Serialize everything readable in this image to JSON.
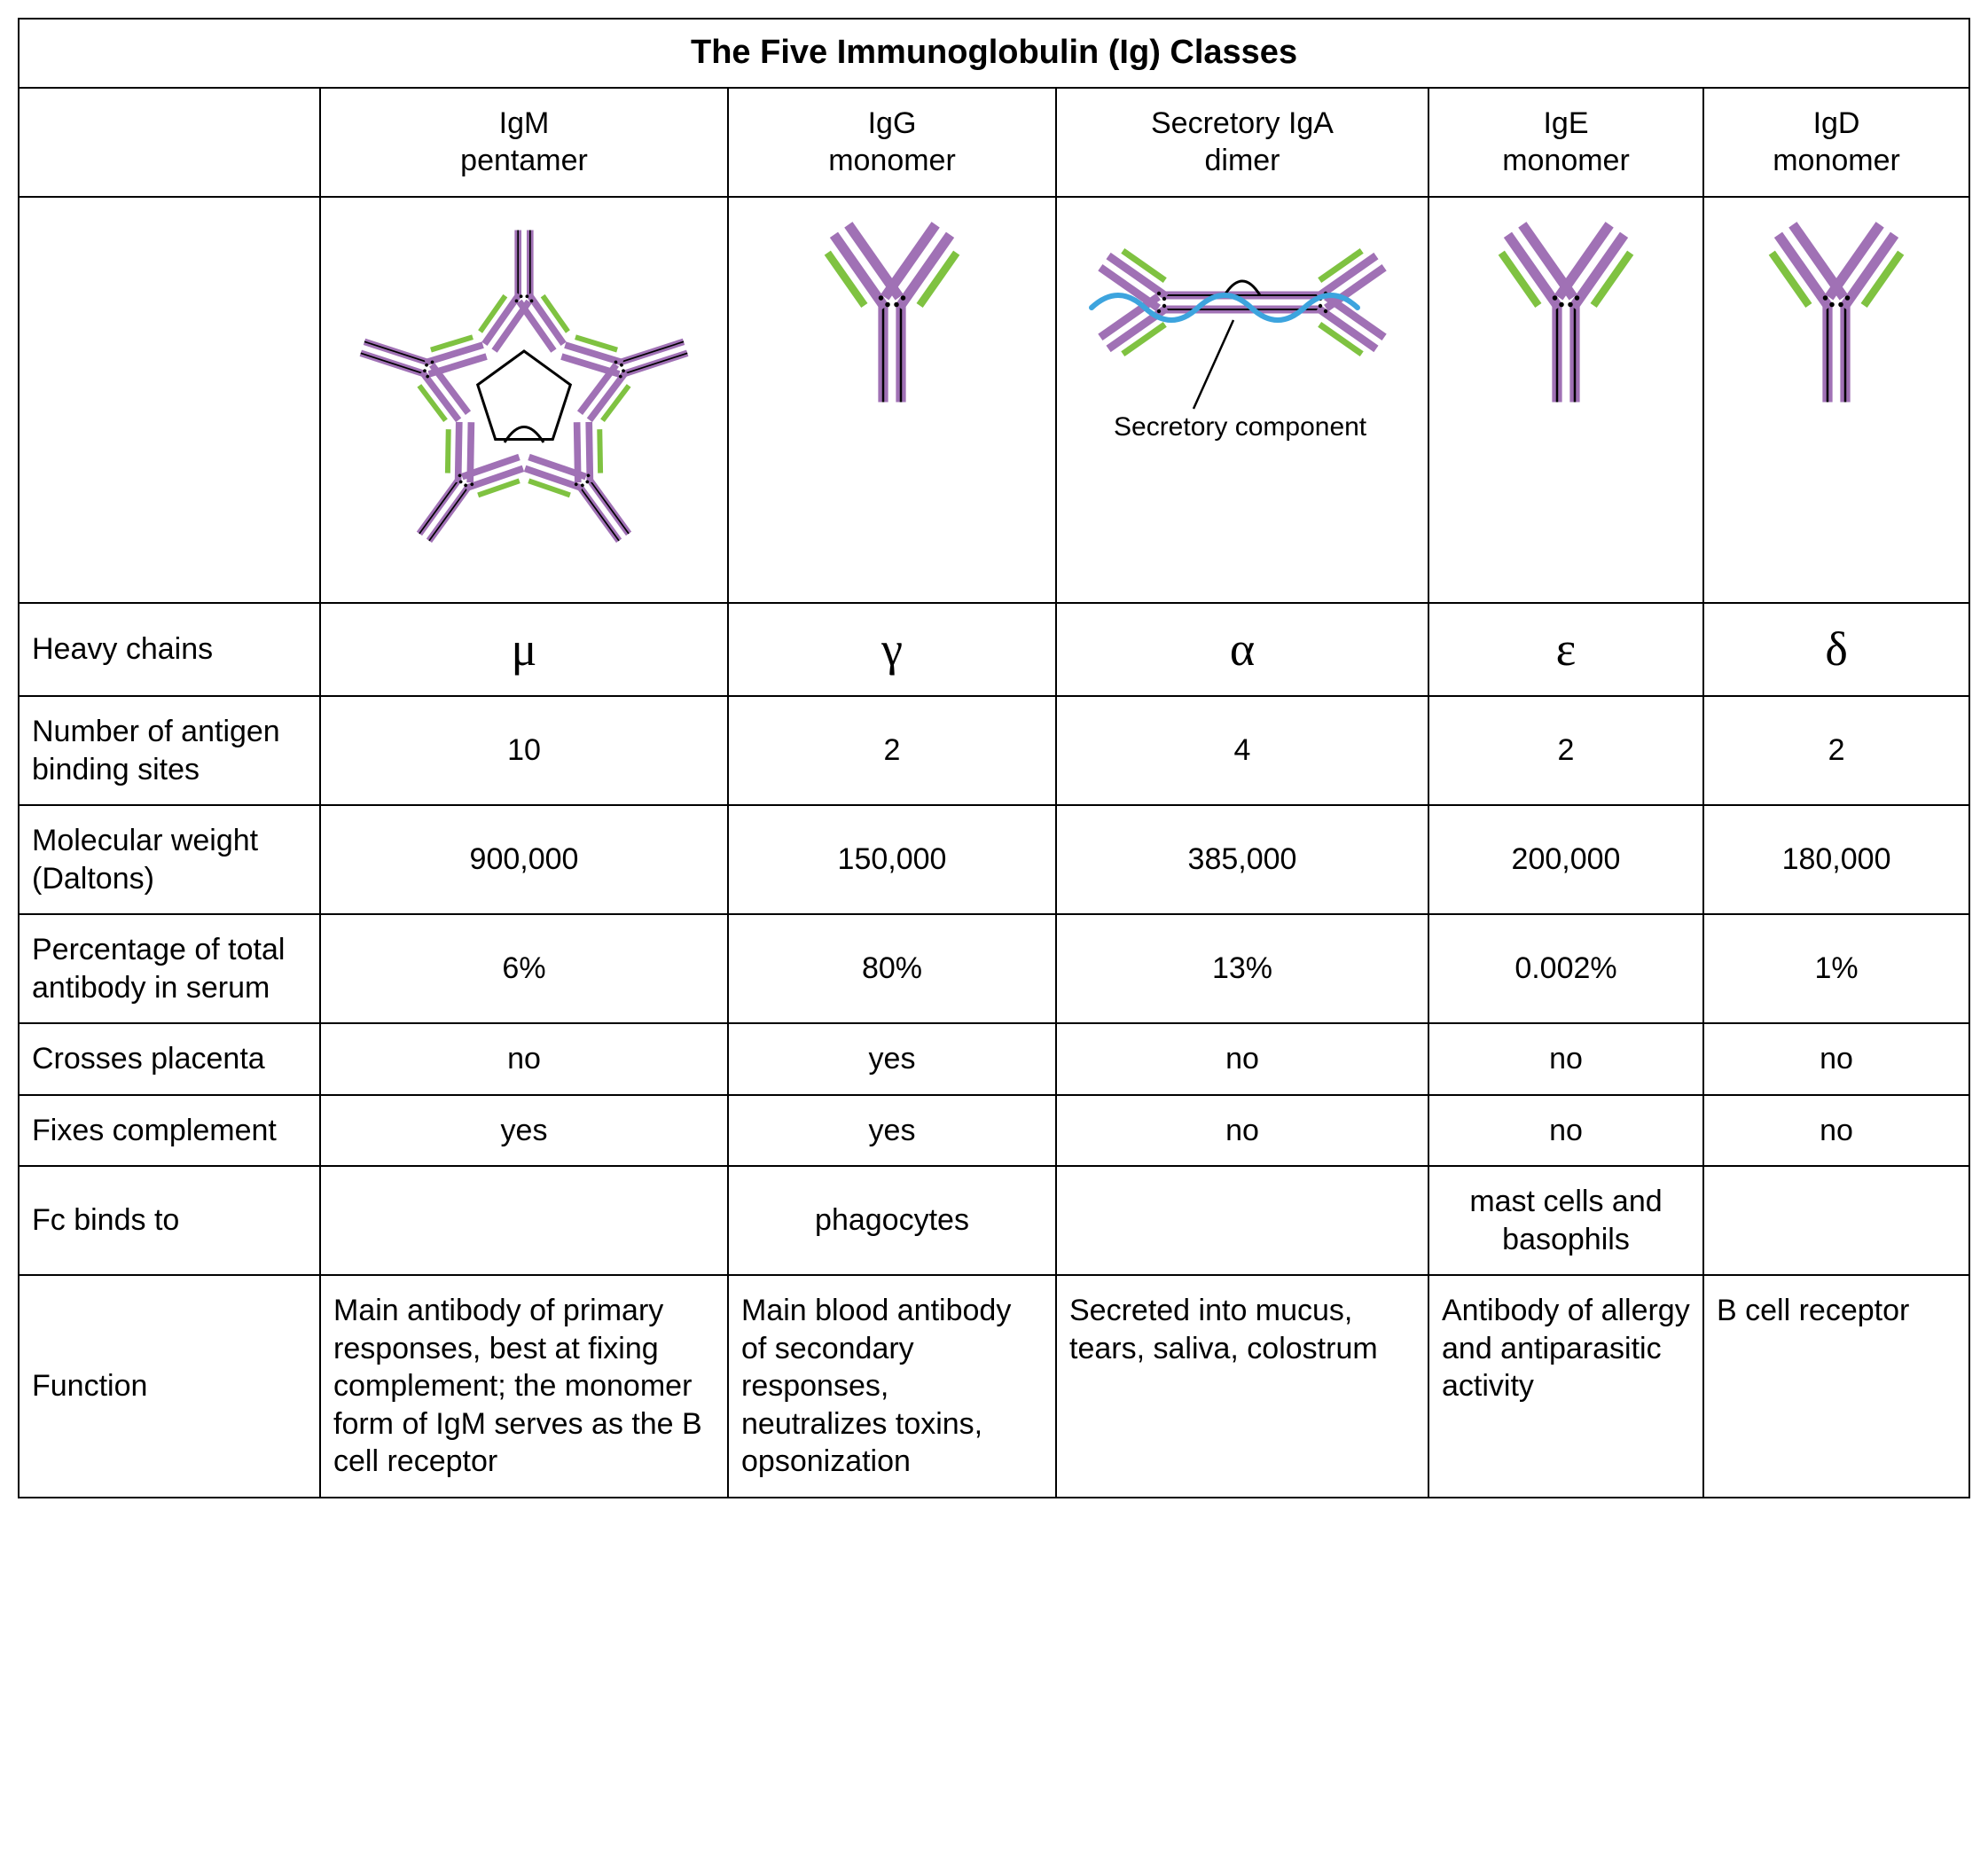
{
  "title": "The Five Immunoglobulin (Ig) Classes",
  "columns": [
    {
      "name": "IgM",
      "form": "pentamer"
    },
    {
      "name": "IgG",
      "form": "monomer"
    },
    {
      "name": "Secretory IgA",
      "form": "dimer"
    },
    {
      "name": "IgE",
      "form": "monomer"
    },
    {
      "name": "IgD",
      "form": "monomer"
    }
  ],
  "rows": {
    "heavy_chains": {
      "label": "Heavy chains",
      "values": [
        "μ",
        "γ",
        "α",
        "ε",
        "δ"
      ],
      "greek": true
    },
    "binding_sites": {
      "label": "Number of antigen binding sites",
      "values": [
        "10",
        "2",
        "4",
        "2",
        "2"
      ]
    },
    "mol_weight": {
      "label": "Molecular weight (Daltons)",
      "values": [
        "900,000",
        "150,000",
        "385,000",
        "200,000",
        "180,000"
      ]
    },
    "serum_pct": {
      "label": "Percentage of total antibody in serum",
      "values": [
        "6%",
        "80%",
        "13%",
        "0.002%",
        "1%"
      ]
    },
    "placenta": {
      "label": "Crosses placenta",
      "values": [
        "no",
        "yes",
        "no",
        "no",
        "no"
      ]
    },
    "complement": {
      "label": "Fixes complement",
      "values": [
        "yes",
        "yes",
        "no",
        "no",
        "no"
      ]
    },
    "fc_binds": {
      "label": "Fc binds to",
      "values": [
        "",
        "phagocytes",
        "",
        "mast cells and basophils",
        ""
      ]
    },
    "function": {
      "label": "Function",
      "values": [
        "Main antibody of primary responses, best at fixing complement; the monomer form of IgM serves as the B cell receptor",
        "Main blood antibody of secondary responses, neutralizes toxins, opsonization",
        "Secreted into mucus, tears, saliva, colostrum",
        "Antibody of allergy and antiparasitic activity",
        "B cell receptor"
      ]
    }
  },
  "diagrams": {
    "secretory_label": "Secretory component",
    "colors": {
      "heavy": "#a071b5",
      "light": "#7fc241",
      "outline": "#000000",
      "jchain": "#000000",
      "secretory": "#3da4de"
    },
    "stroke": {
      "heavy_w": 9,
      "light_w": 7,
      "outline_w": 2,
      "jchain_w": 3,
      "secretory_w": 6
    }
  }
}
